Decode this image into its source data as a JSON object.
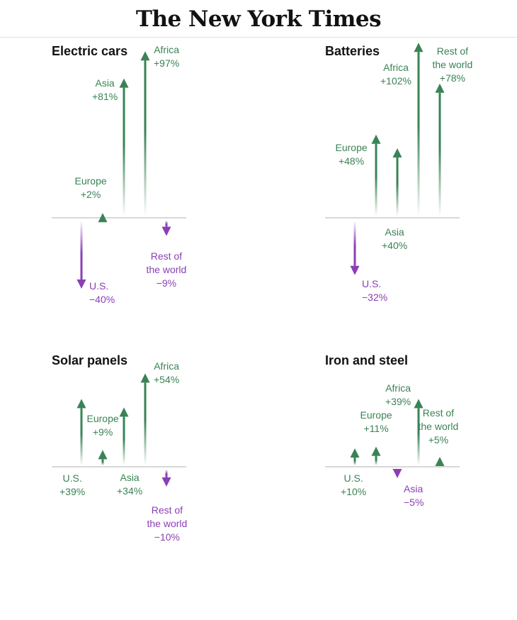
{
  "masthead": "The New York Times",
  "colors": {
    "increase": "#3a8354",
    "decrease": "#8a3fb5",
    "baseline": "#cccccc"
  },
  "chart_data": [
    {
      "type": "bar",
      "title": "Electric cars",
      "categories": [
        "U.S.",
        "Europe",
        "Asia",
        "Africa",
        "Rest of the world"
      ],
      "values": [
        -40,
        2,
        81,
        97,
        -9
      ],
      "labels": [
        "U.S.\n−40%",
        "Europe\n+2%",
        "Asia\n+81%",
        "Africa\n+97%",
        "Rest of\nthe world\n−9%"
      ],
      "unit": "%"
    },
    {
      "type": "bar",
      "title": "Batteries",
      "categories": [
        "U.S.",
        "Europe",
        "Asia",
        "Africa",
        "Rest of the world"
      ],
      "values": [
        -32,
        48,
        40,
        102,
        78
      ],
      "labels": [
        "U.S.\n−32%",
        "Europe\n+48%",
        "Asia\n+40%",
        "Africa\n+102%",
        "Rest of\nthe world\n+78%"
      ],
      "unit": "%"
    },
    {
      "type": "bar",
      "title": "Solar panels",
      "categories": [
        "U.S.",
        "Europe",
        "Asia",
        "Africa",
        "Rest of the world"
      ],
      "values": [
        39,
        9,
        34,
        54,
        -10
      ],
      "labels": [
        "U.S.\n+39%",
        "Europe\n+9%",
        "Asia\n+34%",
        "Africa\n+54%",
        "Rest of\nthe world\n−10%"
      ],
      "unit": "%"
    },
    {
      "type": "bar",
      "title": "Iron and steel",
      "categories": [
        "U.S.",
        "Europe",
        "Asia",
        "Africa",
        "Rest of the world"
      ],
      "values": [
        10,
        11,
        -5,
        39,
        5
      ],
      "labels": [
        "U.S.\n+10%",
        "Europe\n+11%",
        "Asia\n−5%",
        "Africa\n+39%",
        "Rest of\nthe world\n+5%"
      ],
      "unit": "%"
    }
  ]
}
